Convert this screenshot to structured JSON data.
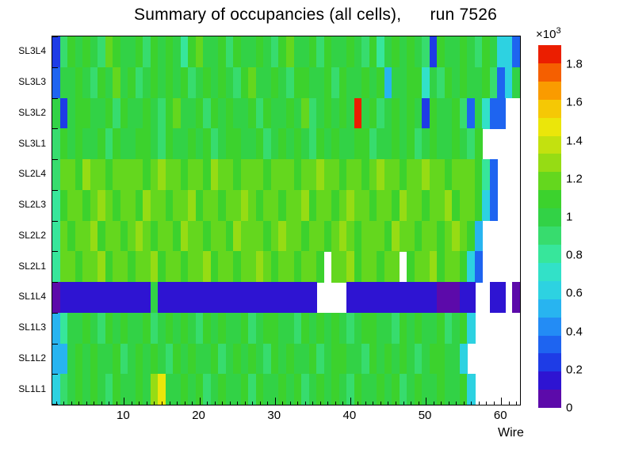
{
  "chart_data": {
    "type": "heatmap",
    "title": "Summary of occupancies (all cells),      run 7526",
    "xlabel": "Wire",
    "n_wires": 62,
    "x_range": [
      0.5,
      62.5
    ],
    "x_ticks": [
      {
        "v": 10,
        "label": "10"
      },
      {
        "v": 20,
        "label": "20"
      },
      {
        "v": 30,
        "label": "30"
      },
      {
        "v": 40,
        "label": "40"
      },
      {
        "v": 50,
        "label": "50"
      },
      {
        "v": 60,
        "label": "60"
      }
    ],
    "z_unit_base": "×10",
    "z_unit_exp": "3",
    "z_range": [
      0,
      1.9
    ],
    "z_scale_note": "cell values in units of 10^3",
    "colorbar_ticks": [
      {
        "v": 0.0,
        "label": "0"
      },
      {
        "v": 0.2,
        "label": "0.2"
      },
      {
        "v": 0.4,
        "label": "0.4"
      },
      {
        "v": 0.6,
        "label": "0.6"
      },
      {
        "v": 0.8,
        "label": "0.8"
      },
      {
        "v": 1.0,
        "label": "1"
      },
      {
        "v": 1.2,
        "label": "1.2"
      },
      {
        "v": 1.4,
        "label": "1.4"
      },
      {
        "v": 1.6,
        "label": "1.6"
      },
      {
        "v": 1.8,
        "label": "1.8"
      }
    ],
    "palette_low_to_high": [
      "#5c0aaa",
      "#2e14d2",
      "#1e3ce6",
      "#1e64f0",
      "#238cf5",
      "#28b4f0",
      "#2dd2e1",
      "#32e1c8",
      "#37e69b",
      "#37dc6e",
      "#32d246",
      "#3cd22d",
      "#64d71e",
      "#96dc14",
      "#c3e10f",
      "#ebe60a",
      "#f5c805",
      "#fa9b00",
      "#f55f00",
      "#eb1e00"
    ],
    "rows_top_to_bottom": [
      {
        "label": "SL3L4",
        "values": [
          0.25,
          0.9,
          1.05,
          0.95,
          1.1,
          1.0,
          0.9,
          1.15,
          1.05,
          0.95,
          1.0,
          1.1,
          0.9,
          1.05,
          0.95,
          1.1,
          1.0,
          0.85,
          1.05,
          1.15,
          0.95,
          1.0,
          1.1,
          0.9,
          1.05,
          1.0,
          0.95,
          1.1,
          1.0,
          0.9,
          1.05,
          1.15,
          0.95,
          1.0,
          1.1,
          0.9,
          1.05,
          1.0,
          0.95,
          1.1,
          1.0,
          0.9,
          1.05,
          0.8,
          1.0,
          1.1,
          0.95,
          1.05,
          1.0,
          0.9,
          0.25,
          1.05,
          1.0,
          0.95,
          1.1,
          1.0,
          0.9,
          1.05,
          1.0,
          0.65,
          0.6,
          0.35
        ]
      },
      {
        "label": "SL3L3",
        "values": [
          0.3,
          1.0,
          0.95,
          1.1,
          1.0,
          0.9,
          1.05,
          1.0,
          1.15,
          0.95,
          1.05,
          0.9,
          1.0,
          1.1,
          0.95,
          1.05,
          1.0,
          1.1,
          0.9,
          1.0,
          1.05,
          0.95,
          1.1,
          1.0,
          0.9,
          1.05,
          1.15,
          1.0,
          0.95,
          1.05,
          1.0,
          0.9,
          1.1,
          1.05,
          0.95,
          1.0,
          1.1,
          0.9,
          1.05,
          1.0,
          0.95,
          1.1,
          1.0,
          1.05,
          0.5,
          1.0,
          0.95,
          1.05,
          1.1,
          0.75,
          1.0,
          0.9,
          1.05,
          1.0,
          1.1,
          0.95,
          1.0,
          1.05,
          0.9,
          0.35,
          0.6,
          0.95
        ]
      },
      {
        "label": "SL3L2",
        "values": [
          1.0,
          0.2,
          0.95,
          1.05,
          1.1,
          0.95,
          1.0,
          1.1,
          0.9,
          1.05,
          1.0,
          0.95,
          1.1,
          1.0,
          0.9,
          1.05,
          1.15,
          0.95,
          1.0,
          1.1,
          0.9,
          1.05,
          1.0,
          1.1,
          0.95,
          1.0,
          1.05,
          0.9,
          1.1,
          1.0,
          0.95,
          1.05,
          1.0,
          1.15,
          0.9,
          1.0,
          1.05,
          0.95,
          1.1,
          1.0,
          1.95,
          1.0,
          1.05,
          0.9,
          1.0,
          1.1,
          0.95,
          1.05,
          1.0,
          0.25,
          1.05,
          0.95,
          1.0,
          1.1,
          0.9,
          0.3,
          1.0,
          0.7,
          0.35,
          0.3,
          null,
          null
        ]
      },
      {
        "label": "SL3L1",
        "values": [
          0.9,
          1.05,
          1.0,
          1.1,
          0.95,
          1.0,
          1.05,
          0.9,
          1.1,
          1.0,
          0.95,
          1.05,
          1.1,
          1.0,
          0.9,
          1.05,
          1.0,
          0.95,
          1.1,
          1.0,
          1.05,
          0.9,
          1.0,
          1.05,
          1.1,
          0.95,
          1.0,
          1.05,
          0.9,
          1.0,
          1.1,
          0.95,
          1.05,
          1.0,
          0.9,
          1.1,
          1.0,
          1.05,
          0.95,
          1.0,
          1.05,
          1.1,
          0.9,
          1.0,
          0.95,
          1.05,
          1.0,
          1.1,
          0.9,
          1.0,
          1.05,
          0.95,
          1.0,
          1.1,
          1.0,
          0.9,
          1.05,
          null,
          null,
          null,
          null,
          null
        ]
      },
      {
        "label": "SL2L4",
        "values": [
          0.9,
          1.15,
          1.2,
          1.1,
          1.25,
          1.15,
          1.2,
          1.1,
          1.15,
          1.2,
          1.2,
          1.15,
          1.1,
          1.2,
          1.25,
          1.15,
          1.2,
          1.1,
          1.15,
          1.2,
          1.1,
          1.25,
          1.15,
          1.2,
          1.1,
          1.15,
          1.2,
          1.2,
          1.1,
          1.15,
          1.2,
          1.15,
          1.1,
          1.2,
          1.15,
          1.25,
          1.2,
          1.15,
          1.1,
          1.2,
          1.15,
          1.1,
          1.2,
          1.25,
          1.15,
          1.2,
          1.1,
          1.15,
          1.2,
          1.25,
          1.15,
          1.2,
          1.1,
          1.15,
          1.2,
          1.15,
          1.1,
          0.85,
          0.3,
          null,
          null,
          null
        ]
      },
      {
        "label": "SL2L3",
        "values": [
          0.85,
          1.1,
          1.2,
          1.15,
          1.1,
          1.2,
          1.25,
          1.15,
          1.1,
          1.2,
          1.15,
          1.1,
          1.25,
          1.2,
          1.15,
          1.1,
          1.2,
          1.15,
          1.25,
          1.1,
          1.15,
          1.2,
          1.1,
          1.15,
          1.2,
          1.25,
          1.15,
          1.1,
          1.2,
          1.15,
          1.1,
          1.2,
          1.15,
          1.25,
          1.1,
          1.2,
          1.15,
          1.1,
          1.2,
          1.25,
          1.15,
          1.2,
          1.1,
          1.15,
          1.2,
          1.1,
          1.25,
          1.15,
          1.2,
          1.1,
          1.15,
          1.2,
          1.25,
          1.1,
          1.15,
          1.2,
          1.1,
          0.6,
          0.3,
          null,
          null,
          null
        ]
      },
      {
        "label": "SL2L2",
        "values": [
          0.8,
          1.15,
          1.1,
          1.2,
          1.15,
          1.25,
          1.1,
          1.2,
          1.15,
          1.1,
          1.2,
          1.25,
          1.15,
          1.1,
          1.2,
          1.15,
          1.1,
          1.25,
          1.2,
          1.15,
          1.1,
          1.2,
          1.15,
          1.1,
          1.25,
          1.2,
          1.15,
          1.2,
          1.1,
          1.15,
          1.25,
          1.2,
          1.15,
          1.1,
          1.2,
          1.15,
          1.1,
          1.2,
          1.25,
          1.15,
          1.1,
          1.2,
          1.15,
          1.2,
          1.1,
          1.25,
          1.15,
          1.2,
          1.1,
          1.15,
          1.2,
          1.1,
          1.15,
          1.25,
          1.2,
          1.1,
          0.55,
          null,
          null,
          null,
          null,
          null
        ]
      },
      {
        "label": "SL2L1",
        "values": [
          0.85,
          1.2,
          1.15,
          1.1,
          1.2,
          1.15,
          1.25,
          1.1,
          1.2,
          1.15,
          1.1,
          1.2,
          1.15,
          1.25,
          1.1,
          1.2,
          1.15,
          1.1,
          1.2,
          1.15,
          1.25,
          1.1,
          1.15,
          1.2,
          1.1,
          1.15,
          1.2,
          1.25,
          1.15,
          1.1,
          1.2,
          1.15,
          1.1,
          1.2,
          1.15,
          1.1,
          null,
          1.2,
          1.15,
          1.25,
          1.1,
          1.2,
          1.15,
          1.1,
          1.2,
          1.15,
          null,
          1.1,
          1.2,
          1.15,
          1.25,
          1.1,
          1.15,
          1.2,
          1.1,
          0.65,
          0.3,
          null,
          null,
          null,
          null,
          null
        ]
      },
      {
        "label": "SL1L4",
        "values": [
          0.06,
          0.1,
          0.15,
          0.12,
          0.15,
          0.13,
          0.15,
          0.12,
          0.14,
          0.15,
          0.12,
          0.15,
          0.13,
          0.95,
          0.15,
          0.12,
          0.15,
          0.13,
          0.15,
          0.12,
          0.15,
          0.14,
          0.12,
          0.15,
          0.13,
          0.15,
          0.12,
          0.15,
          0.14,
          0.12,
          0.15,
          0.13,
          0.15,
          0.12,
          0.15,
          null,
          null,
          null,
          null,
          0.15,
          0.12,
          0.15,
          0.13,
          0.15,
          0.12,
          0.14,
          0.15,
          0.12,
          0.15,
          0.13,
          0.15,
          0.05,
          0.06,
          0.05,
          0.15,
          0.12,
          null,
          null,
          0.15,
          0.12,
          null,
          0.05
        ]
      },
      {
        "label": "SL1L3",
        "values": [
          0.55,
          0.8,
          1.0,
          0.95,
          1.05,
          1.0,
          0.9,
          1.05,
          1.0,
          1.1,
          0.95,
          1.0,
          1.05,
          0.9,
          1.0,
          1.1,
          0.95,
          1.05,
          1.0,
          0.9,
          1.05,
          1.0,
          1.1,
          0.95,
          1.0,
          1.05,
          0.9,
          1.0,
          1.05,
          1.1,
          0.95,
          1.0,
          0.9,
          1.05,
          1.0,
          1.1,
          0.95,
          1.05,
          1.0,
          0.9,
          1.0,
          1.05,
          1.1,
          0.95,
          1.0,
          0.9,
          1.05,
          1.0,
          1.1,
          0.95,
          1.0,
          1.05,
          0.9,
          1.0,
          1.05,
          0.6,
          null,
          null,
          null,
          null,
          null,
          null
        ]
      },
      {
        "label": "SL1L2",
        "values": [
          0.5,
          0.55,
          0.95,
          1.05,
          1.0,
          1.1,
          0.95,
          1.0,
          1.05,
          0.9,
          1.0,
          1.1,
          0.95,
          1.05,
          1.0,
          0.9,
          1.05,
          1.0,
          1.1,
          0.95,
          1.0,
          1.05,
          0.9,
          1.0,
          1.1,
          0.95,
          1.05,
          1.0,
          0.9,
          1.05,
          1.0,
          1.1,
          0.95,
          1.0,
          1.05,
          0.9,
          1.0,
          1.05,
          1.1,
          0.95,
          1.0,
          0.9,
          1.05,
          1.0,
          1.1,
          0.95,
          1.05,
          1.0,
          0.9,
          1.0,
          1.05,
          1.1,
          0.95,
          1.0,
          0.65,
          null,
          null,
          null,
          null,
          null,
          null,
          null
        ]
      },
      {
        "label": "SL1L1",
        "values": [
          0.6,
          0.9,
          1.0,
          1.05,
          0.95,
          1.1,
          1.0,
          0.9,
          1.05,
          1.0,
          0.95,
          1.1,
          1.0,
          1.3,
          1.5,
          1.0,
          0.95,
          1.05,
          1.0,
          1.1,
          0.9,
          1.0,
          1.05,
          0.95,
          1.0,
          1.1,
          0.9,
          1.05,
          1.0,
          0.95,
          1.05,
          1.0,
          1.1,
          0.9,
          1.0,
          1.05,
          0.95,
          1.1,
          1.0,
          0.9,
          1.05,
          1.0,
          0.95,
          1.05,
          1.0,
          1.1,
          0.9,
          1.0,
          1.05,
          0.95,
          1.0,
          1.1,
          0.95,
          1.0,
          1.05,
          0.6,
          null,
          null,
          null,
          null,
          null,
          null
        ]
      }
    ]
  }
}
